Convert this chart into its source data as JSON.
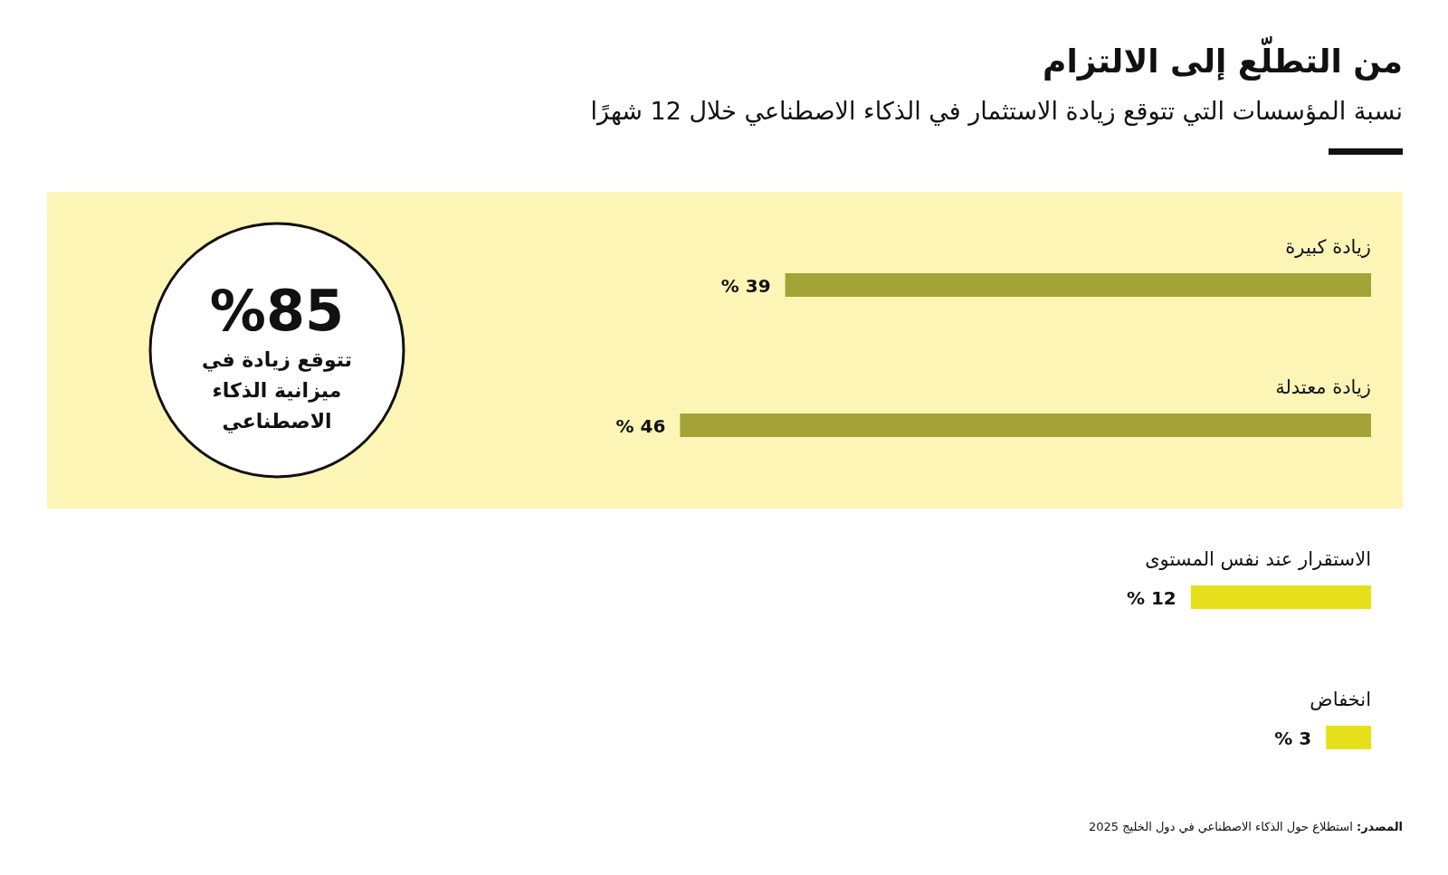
{
  "chart_data": {
    "type": "bar",
    "orientation": "horizontal",
    "title": "من التطلّع إلى الالتزام",
    "subtitle": "نسبة المؤسسات التي تتوقع زيادة الاستثمار في الذكاء الاصطناعي خلال 12 شهرًا",
    "categories": [
      "زيادة كبيرة",
      "زيادة معتدلة",
      "الاستقرار عند نفس المستوى",
      "انخفاض"
    ],
    "values": [
      39,
      46,
      12,
      3
    ],
    "colors": [
      "#a3a336",
      "#a3a336",
      "#e5e01b",
      "#e5e01b"
    ],
    "value_labels": [
      "39 %",
      "46 %",
      "12 %",
      "3 %"
    ],
    "bands": [
      {
        "axis": "y",
        "from": "زيادة كبيرة",
        "to": "زيادة معتدلة",
        "color": "#fdf5b6"
      }
    ],
    "annotations": [
      "%85",
      "تتوقع زيادة في ميزانية الذكاء الاصطناعي",
      "**المصدر:** استطلاع حول الذكاء الاصطناعي في دول الخليج 2025"
    ]
  }
}
